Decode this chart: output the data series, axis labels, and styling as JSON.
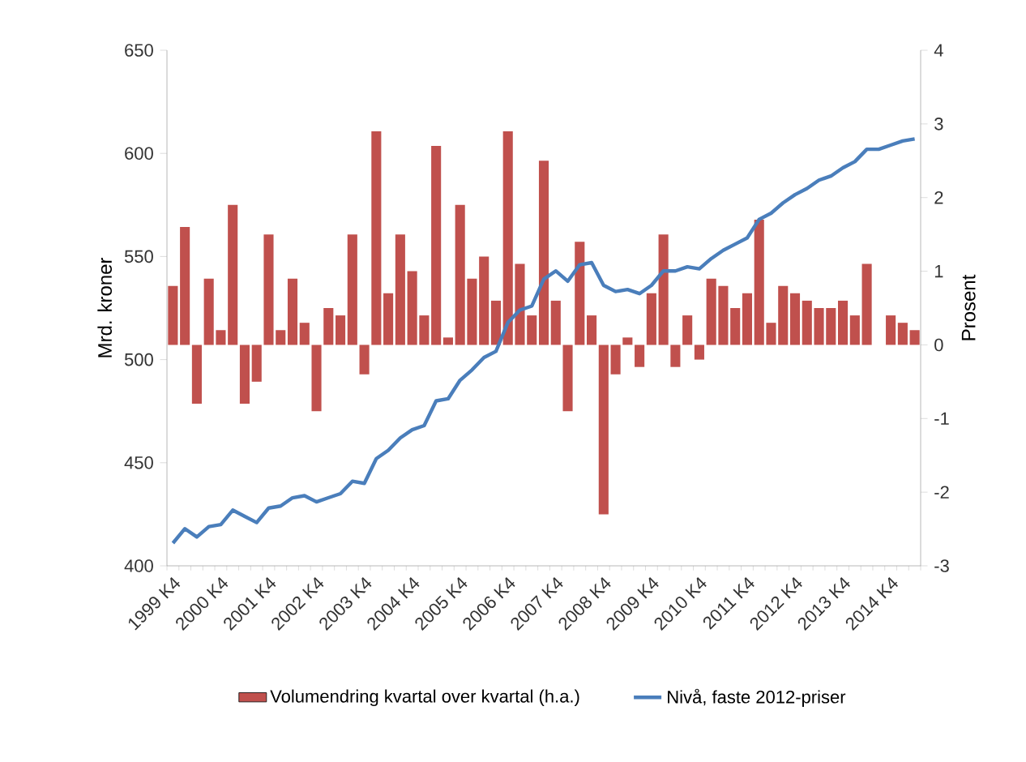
{
  "chart_data": {
    "type": "bar",
    "categories": [
      "1999 K4",
      null,
      null,
      null,
      "2000 K4",
      null,
      null,
      null,
      "2001 K4",
      null,
      null,
      null,
      "2002 K4",
      null,
      null,
      null,
      "2003 K4",
      null,
      null,
      null,
      "2004 K4",
      null,
      null,
      null,
      "2005 K4",
      null,
      null,
      null,
      "2006 K4",
      null,
      null,
      null,
      "2007 K4",
      null,
      null,
      null,
      "2008 K4",
      null,
      null,
      null,
      "2009 K4",
      null,
      null,
      null,
      "2010 K4",
      null,
      null,
      null,
      "2011 K4",
      null,
      null,
      null,
      "2012 K4",
      null,
      null,
      null,
      "2013 K4",
      null,
      null,
      null,
      "2014 K4",
      null,
      null
    ],
    "series": [
      {
        "name": "Volumendring kvartal over kvartal (h.a.)",
        "axis": "y2",
        "color": "#c0504d",
        "values": [
          0.8,
          1.6,
          -0.8,
          0.9,
          0.2,
          1.9,
          -0.8,
          -0.5,
          1.5,
          0.2,
          0.9,
          0.3,
          -0.9,
          0.5,
          0.4,
          1.5,
          -0.4,
          2.9,
          0.7,
          1.5,
          1.0,
          0.4,
          2.7,
          0.1,
          1.9,
          0.9,
          1.2,
          0.6,
          2.9,
          1.1,
          0.4,
          2.5,
          0.6,
          -0.9,
          1.4,
          0.4,
          -2.3,
          -0.4,
          0.1,
          -0.3,
          0.7,
          1.5,
          -0.3,
          0.4,
          -0.2,
          0.9,
          0.8,
          0.5,
          0.7,
          1.7,
          0.3,
          0.8,
          0.7,
          0.6,
          0.5,
          0.5,
          0.6,
          0.4,
          1.1,
          null,
          0.4,
          0.3,
          0.2
        ]
      },
      {
        "name": "Nivå, faste 2012-priser",
        "type": "line",
        "axis": "y",
        "color": "#4a7ebb",
        "values": [
          411,
          418,
          414,
          419,
          420,
          427,
          424,
          421,
          428,
          429,
          433,
          434,
          431,
          433,
          435,
          441,
          440,
          452,
          456,
          462,
          466,
          468,
          480,
          481,
          490,
          495,
          501,
          504,
          518,
          524,
          526,
          539,
          543,
          538,
          546,
          547,
          536,
          533,
          534,
          532,
          536,
          543,
          543,
          545,
          544,
          549,
          553,
          556,
          559,
          568,
          571,
          576,
          580,
          583,
          587,
          589,
          593,
          596,
          602,
          602,
          604,
          606,
          607
        ]
      }
    ],
    "ylabel": "Mrd. kroner",
    "y2label": "Prosent",
    "ylim": [
      400,
      650
    ],
    "yticks": [
      400,
      450,
      500,
      550,
      600,
      650
    ],
    "y2lim": [
      -3,
      4
    ],
    "y2ticks": [
      -3,
      -2,
      -1,
      0,
      1,
      2,
      3,
      4
    ],
    "legend": "bottom"
  }
}
